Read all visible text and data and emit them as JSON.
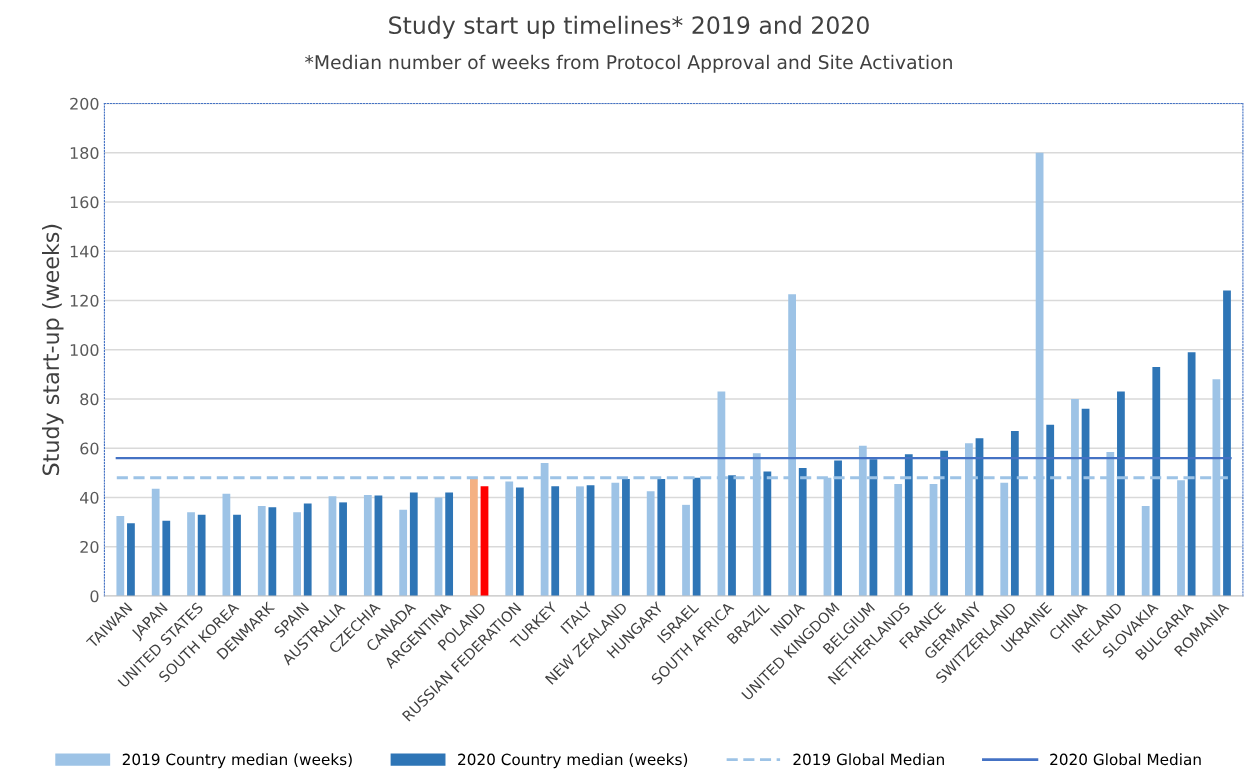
{
  "chart_data": {
    "type": "bar",
    "title": "Study start up timelines* 2019 and 2020",
    "subtitle": "*Median number of weeks from Protocol Approval and Site Activation",
    "ylabel": "Study start-up (weeks)",
    "categories": [
      "TAIWAN",
      "JAPAN",
      "UNITED STATES",
      "SOUTH KOREA",
      "DENMARK",
      "SPAIN",
      "AUSTRALIA",
      "CZECHIA",
      "CANADA",
      "ARGENTINA",
      "POLAND",
      "RUSSIAN FEDERATION",
      "TURKEY",
      "ITALY",
      "NEW ZEALAND",
      "HUNGARY",
      "ISRAEL",
      "SOUTH AFRICA",
      "BRAZIL",
      "INDIA",
      "UNITED KINGDOM",
      "BELGIUM",
      "NETHERLANDS",
      "FRANCE",
      "GERMANY",
      "SWITZERLAND",
      "UKRAINE",
      "CHINA",
      "IRELAND",
      "SLOVAKIA",
      "BULGARIA",
      "ROMANIA"
    ],
    "series": [
      {
        "name": "2019 Country median (weeks)",
        "color": "#9dc3e6",
        "colors": [
          "#9dc3e6",
          "#9dc3e6",
          "#9dc3e6",
          "#9dc3e6",
          "#9dc3e6",
          "#9dc3e6",
          "#9dc3e6",
          "#9dc3e6",
          "#9dc3e6",
          "#9dc3e6",
          "#f4b183",
          "#9dc3e6",
          "#9dc3e6",
          "#9dc3e6",
          "#9dc3e6",
          "#9dc3e6",
          "#9dc3e6",
          "#9dc3e6",
          "#9dc3e6",
          "#9dc3e6",
          "#9dc3e6",
          "#9dc3e6",
          "#9dc3e6",
          "#9dc3e6",
          "#9dc3e6",
          "#9dc3e6",
          "#9dc3e6",
          "#9dc3e6",
          "#9dc3e6",
          "#9dc3e6",
          "#9dc3e6",
          "#9dc3e6"
        ],
        "values": [
          32.5,
          43.5,
          34,
          41.5,
          36.5,
          34,
          40.5,
          41,
          35,
          40,
          47.5,
          46.5,
          54,
          44.5,
          46,
          42.5,
          37,
          83,
          58,
          122.5,
          48,
          61,
          45.5,
          45.5,
          62,
          46,
          180,
          80,
          58.5,
          36.5,
          47,
          88
        ]
      },
      {
        "name": "2020 Country median (weeks)",
        "color": "#2e75b6",
        "colors": [
          "#2e75b6",
          "#2e75b6",
          "#2e75b6",
          "#2e75b6",
          "#2e75b6",
          "#2e75b6",
          "#2e75b6",
          "#2e75b6",
          "#2e75b6",
          "#2e75b6",
          "#ff0000",
          "#2e75b6",
          "#2e75b6",
          "#2e75b6",
          "#2e75b6",
          "#2e75b6",
          "#2e75b6",
          "#2e75b6",
          "#2e75b6",
          "#2e75b6",
          "#2e75b6",
          "#2e75b6",
          "#2e75b6",
          "#2e75b6",
          "#2e75b6",
          "#2e75b6",
          "#2e75b6",
          "#2e75b6",
          "#2e75b6",
          "#2e75b6",
          "#2e75b6",
          "#2e75b6"
        ],
        "values": [
          29.5,
          30.5,
          33,
          33,
          36,
          37.5,
          38,
          40.8,
          42,
          42,
          44.5,
          44,
          44.5,
          45,
          47.5,
          47.5,
          48,
          49,
          50.5,
          52,
          55,
          55.5,
          57.5,
          59,
          64,
          67,
          69.5,
          76,
          83,
          93,
          99,
          124
        ]
      }
    ],
    "ref_lines": [
      {
        "axis": "y",
        "value": 48,
        "label": "2019 Global Median",
        "color": "#9dc3e6",
        "line_style": "dashed"
      },
      {
        "axis": "y",
        "value": 56,
        "label": "2020 Global Median",
        "color": "#4472c4",
        "line_style": "solid"
      }
    ],
    "ylim": [
      0,
      200
    ],
    "yticks": [
      0,
      20,
      40,
      60,
      80,
      100,
      120,
      140,
      160,
      180,
      200
    ],
    "grid": "y",
    "legend": "bottom"
  }
}
